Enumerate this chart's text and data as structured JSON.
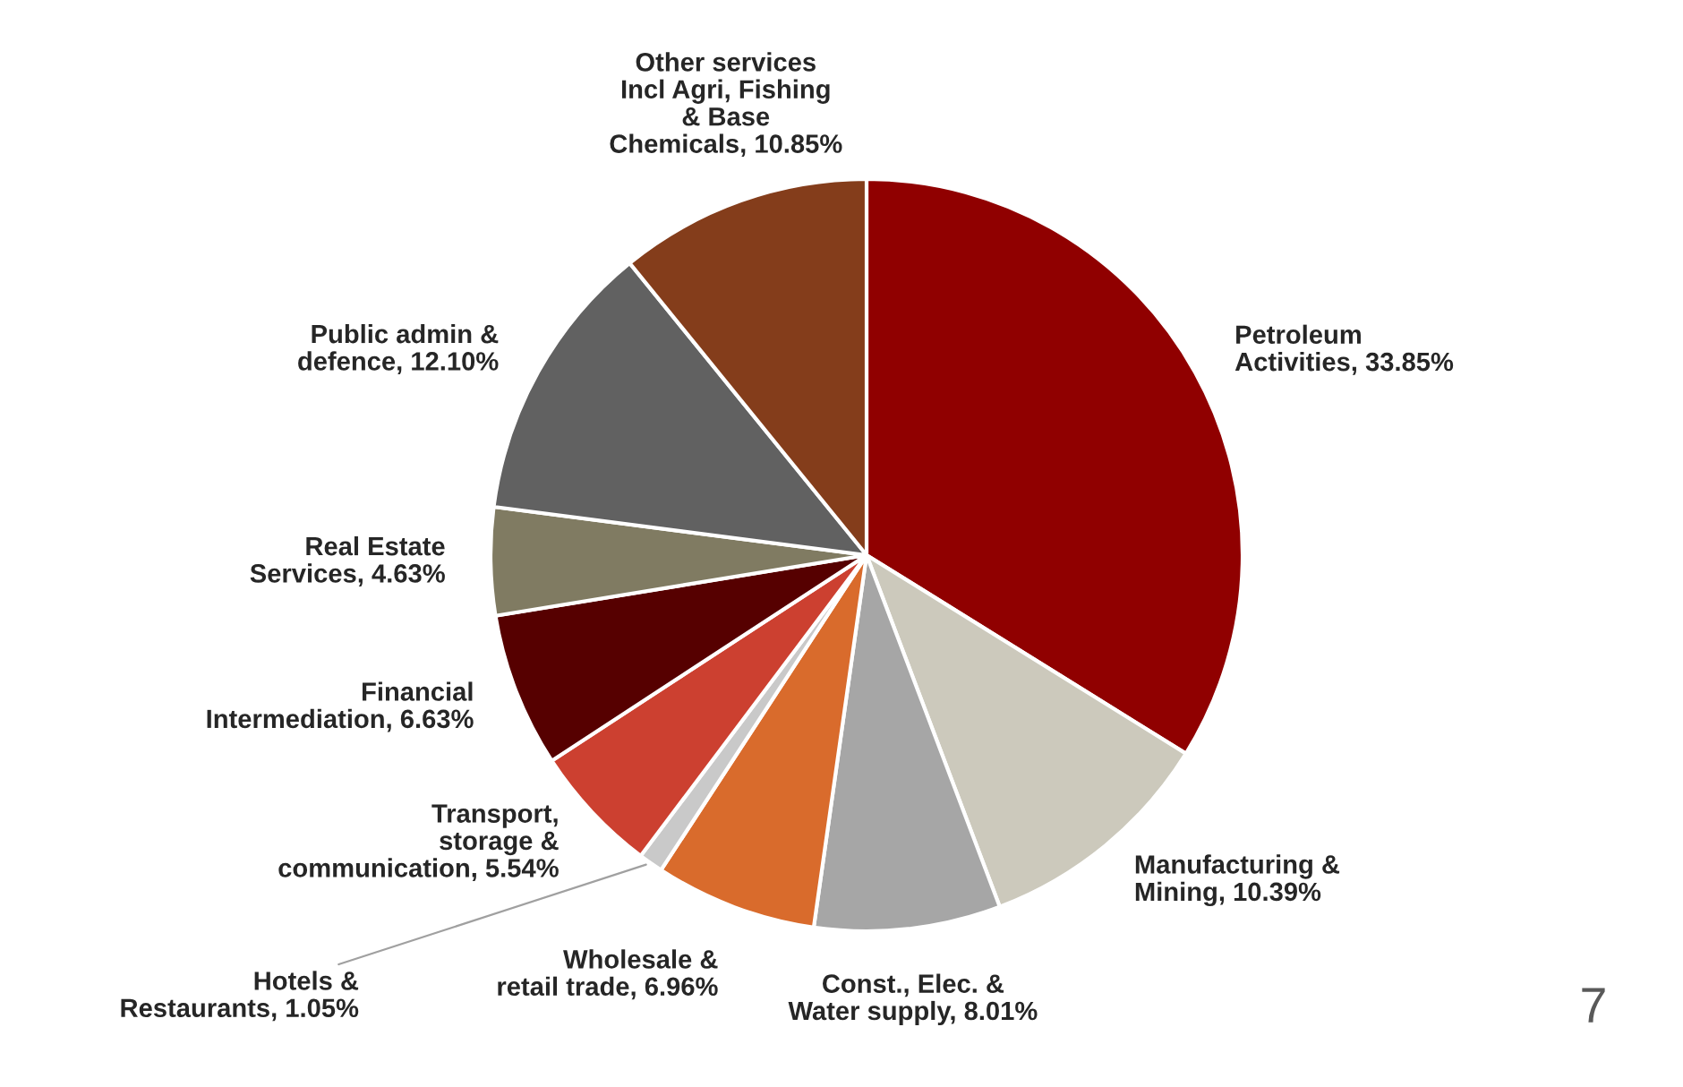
{
  "chart_data": {
    "type": "pie",
    "categories": [
      "Petroleum\nActivities",
      "Manufacturing &\nMining",
      "Const., Elec. &\nWater supply",
      "Wholesale &\nretail trade",
      "Hotels &\nRestaurants",
      "Transport,\nstorage &\ncommunication",
      "Financial\nIntermediation",
      "Real Estate\nServices",
      "Public admin &\ndefence",
      "Other services\nIncl Agri, Fishing\n& Base\nChemicals"
    ],
    "values": [
      33.85,
      10.39,
      8.01,
      6.96,
      1.05,
      5.54,
      6.63,
      4.63,
      12.1,
      10.85
    ],
    "value_labels": [
      "33.85%",
      "10.39%",
      "8.01%",
      "6.96%",
      "1.05%",
      "5.54%",
      "6.63%",
      "4.63%",
      "12.10%",
      "10.85%"
    ],
    "colors": [
      "#900000",
      "#ccc9bc",
      "#a6a6a6",
      "#d96b2c",
      "#c9c9c9",
      "#cc4030",
      "#560000",
      "#807b62",
      "#616161",
      "#843d1b"
    ],
    "annotations": [
      "7"
    ]
  }
}
